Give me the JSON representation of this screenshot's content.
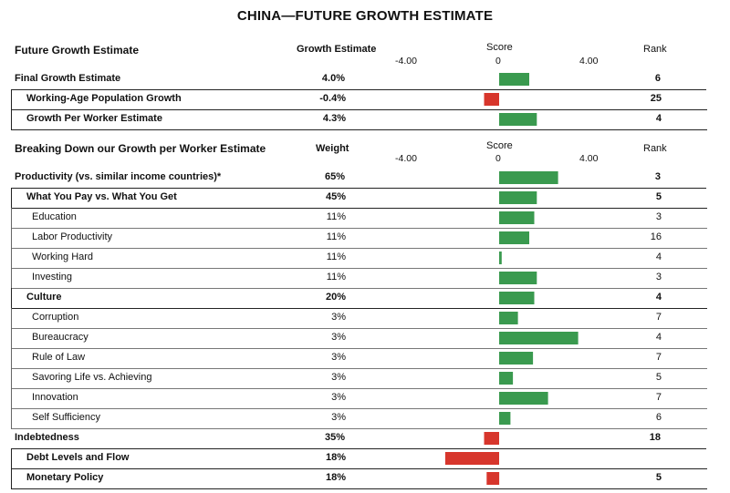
{
  "title": "CHINA—FUTURE GROWTH ESTIMATE",
  "section1": {
    "heading": "Future Growth Estimate",
    "value_header": "Growth Estimate",
    "score_header": "Score",
    "rank_header": "Rank",
    "ticks": [
      "-4.00",
      "0",
      "4.00"
    ]
  },
  "section2": {
    "heading": "Breaking Down our Growth per Worker Estimate",
    "value_header": "Weight",
    "score_header": "Score",
    "rank_header": "Rank",
    "ticks": [
      "-4.00",
      "0",
      "4.00"
    ]
  },
  "chart_data": {
    "type": "bar",
    "orientation": "horizontal",
    "xlim": [
      -4,
      4
    ],
    "colors": {
      "positive": "#3a9a4f",
      "negative": "#d7362c"
    },
    "rows": [
      {
        "label": "Final Growth Estimate",
        "value": "4.0%",
        "score": 1.2,
        "rank": "6",
        "bold": true,
        "level": 0
      },
      {
        "label": "Working-Age Population Growth",
        "value": "-0.4%",
        "score": -0.6,
        "rank": "25",
        "bold": true,
        "level": 1
      },
      {
        "label": "Growth Per Worker Estimate",
        "value": "4.3%",
        "score": 1.5,
        "rank": "4",
        "bold": true,
        "level": 1
      },
      {
        "label": "Productivity (vs. similar income countries)*",
        "value": "65%",
        "score": 2.35,
        "rank": "3",
        "bold": true,
        "level": 0
      },
      {
        "label": "What You Pay vs. What You Get",
        "value": "45%",
        "score": 1.5,
        "rank": "5",
        "bold": true,
        "level": 1
      },
      {
        "label": "Education",
        "value": "11%",
        "score": 1.4,
        "rank": "3",
        "bold": false,
        "level": 2
      },
      {
        "label": "Labor Productivity",
        "value": "11%",
        "score": 1.2,
        "rank": "16",
        "bold": false,
        "level": 2
      },
      {
        "label": "Working Hard",
        "value": "11%",
        "score": 0.1,
        "rank": "4",
        "bold": false,
        "level": 2
      },
      {
        "label": "Investing",
        "value": "11%",
        "score": 1.5,
        "rank": "3",
        "bold": false,
        "level": 2
      },
      {
        "label": "Culture",
        "value": "20%",
        "score": 1.4,
        "rank": "4",
        "bold": true,
        "level": 1
      },
      {
        "label": "Corruption",
        "value": "3%",
        "score": 0.75,
        "rank": "7",
        "bold": false,
        "level": 2
      },
      {
        "label": "Bureaucracy",
        "value": "3%",
        "score": 3.15,
        "rank": "4",
        "bold": false,
        "level": 2
      },
      {
        "label": "Rule of Law",
        "value": "3%",
        "score": 1.35,
        "rank": "7",
        "bold": false,
        "level": 2
      },
      {
        "label": "Savoring Life vs. Achieving",
        "value": "3%",
        "score": 0.55,
        "rank": "5",
        "bold": false,
        "level": 2
      },
      {
        "label": "Innovation",
        "value": "3%",
        "score": 1.95,
        "rank": "7",
        "bold": false,
        "level": 2
      },
      {
        "label": "Self Sufficiency",
        "value": "3%",
        "score": 0.45,
        "rank": "6",
        "bold": false,
        "level": 2
      },
      {
        "label": "Indebtedness",
        "value": "35%",
        "score": -0.6,
        "rank": "18",
        "bold": true,
        "level": 0
      },
      {
        "label": "Debt Levels and Flow",
        "value": "18%",
        "score": -2.15,
        "rank": "",
        "bold": true,
        "level": 1
      },
      {
        "label": "Monetary Policy",
        "value": "18%",
        "score": -0.5,
        "rank": "5",
        "bold": true,
        "level": 1
      }
    ]
  }
}
